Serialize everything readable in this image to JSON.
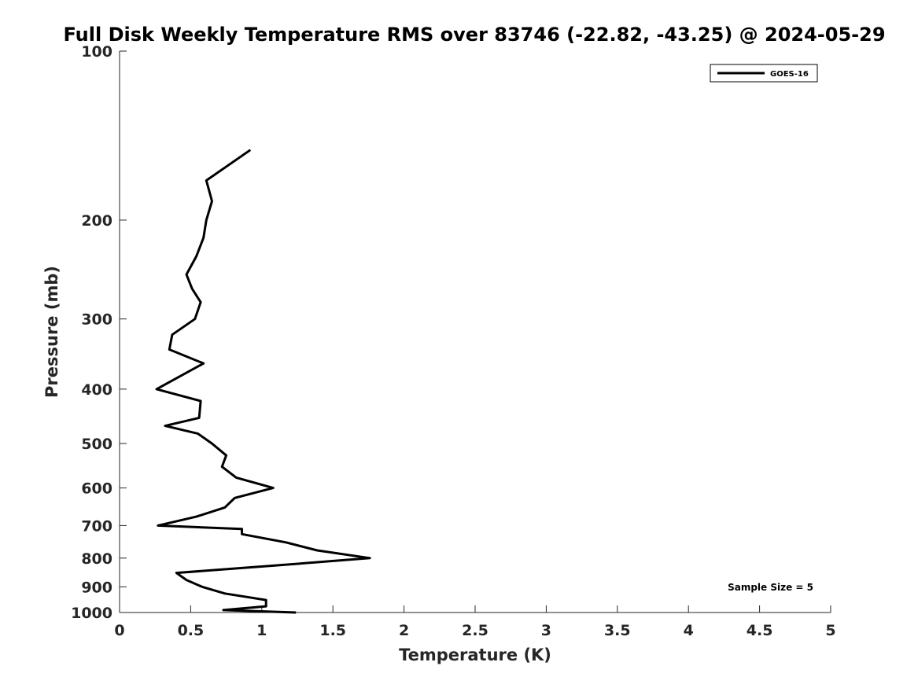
{
  "chart_data": {
    "type": "line",
    "title": "Full Disk Weekly Temperature RMS over 83746 (-22.82, -43.25) @ 2024-05-29",
    "xlabel": "Temperature (K)",
    "ylabel": "Pressure (mb)",
    "xlim": [
      0,
      5
    ],
    "ylim": [
      1000,
      100
    ],
    "y_scale": "log",
    "x_ticks": [
      0,
      0.5,
      1,
      1.5,
      2,
      2.5,
      3,
      3.5,
      4,
      4.5,
      5
    ],
    "x_tick_labels": [
      "0",
      "0.5",
      "1",
      "1.5",
      "2",
      "2.5",
      "3",
      "3.5",
      "4",
      "4.5",
      "5"
    ],
    "y_ticks": [
      100,
      200,
      300,
      400,
      500,
      600,
      700,
      800,
      900,
      1000
    ],
    "y_tick_labels": [
      "100",
      "200",
      "300",
      "400",
      "500",
      "600",
      "700",
      "800",
      "900",
      "1000"
    ],
    "grid": false,
    "legend_position": "top-right",
    "color": "#000000",
    "series": [
      {
        "name": "GOES-16",
        "x": [
          0.92,
          0.61,
          0.65,
          0.61,
          0.59,
          0.54,
          0.47,
          0.51,
          0.57,
          0.53,
          0.37,
          0.35,
          0.59,
          0.26,
          0.57,
          0.56,
          0.32,
          0.55,
          0.65,
          0.75,
          0.72,
          0.82,
          1.08,
          0.81,
          0.74,
          0.54,
          0.27,
          0.86,
          0.86,
          1.17,
          1.39,
          1.76,
          1.09,
          0.4,
          0.47,
          0.58,
          0.74,
          1.03,
          1.03,
          0.73,
          1.24
        ],
        "y": [
          150,
          170,
          185,
          200,
          215,
          232,
          250,
          265,
          280,
          300,
          320,
          340,
          360,
          400,
          420,
          450,
          465,
          480,
          500,
          525,
          550,
          575,
          600,
          625,
          650,
          675,
          700,
          710,
          725,
          750,
          775,
          800,
          825,
          850,
          875,
          900,
          925,
          950,
          975,
          990,
          1000
        ]
      }
    ],
    "annotations": [
      {
        "text": "Sample Size = 5",
        "position": "bottom-right"
      }
    ]
  }
}
